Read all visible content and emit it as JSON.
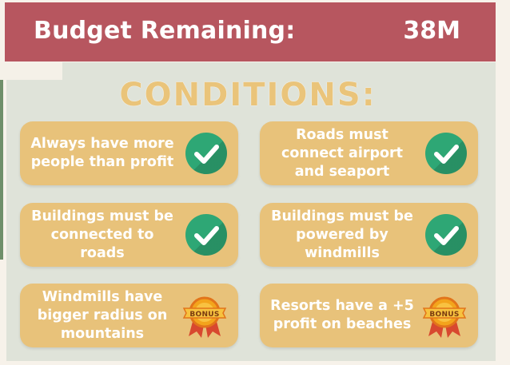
{
  "header": {
    "title": "Budget Remaining:",
    "value": "38M"
  },
  "conditions": {
    "title": "CONDITIONS:",
    "items": [
      {
        "text": "Always have more people than profit",
        "icon": "check-icon"
      },
      {
        "text": "Roads must connect airport and seaport",
        "icon": "check-icon"
      },
      {
        "text": "Buildings must be connected to roads",
        "icon": "check-icon"
      },
      {
        "text": "Buildings must be powered by windmills",
        "icon": "check-icon"
      },
      {
        "text": "Windmills have bigger radius on mountains",
        "icon": "bonus-badge-icon"
      },
      {
        "text": "Resorts have a +5 profit on beaches",
        "icon": "bonus-badge-icon"
      }
    ],
    "bonus_label": "BONUS"
  },
  "colors": {
    "header_bg": "#b7565f",
    "panel_bg": "#dfe3d9",
    "card_bg": "#e8c27a",
    "title_color": "#eac47a",
    "check_green": "#2ea775"
  }
}
